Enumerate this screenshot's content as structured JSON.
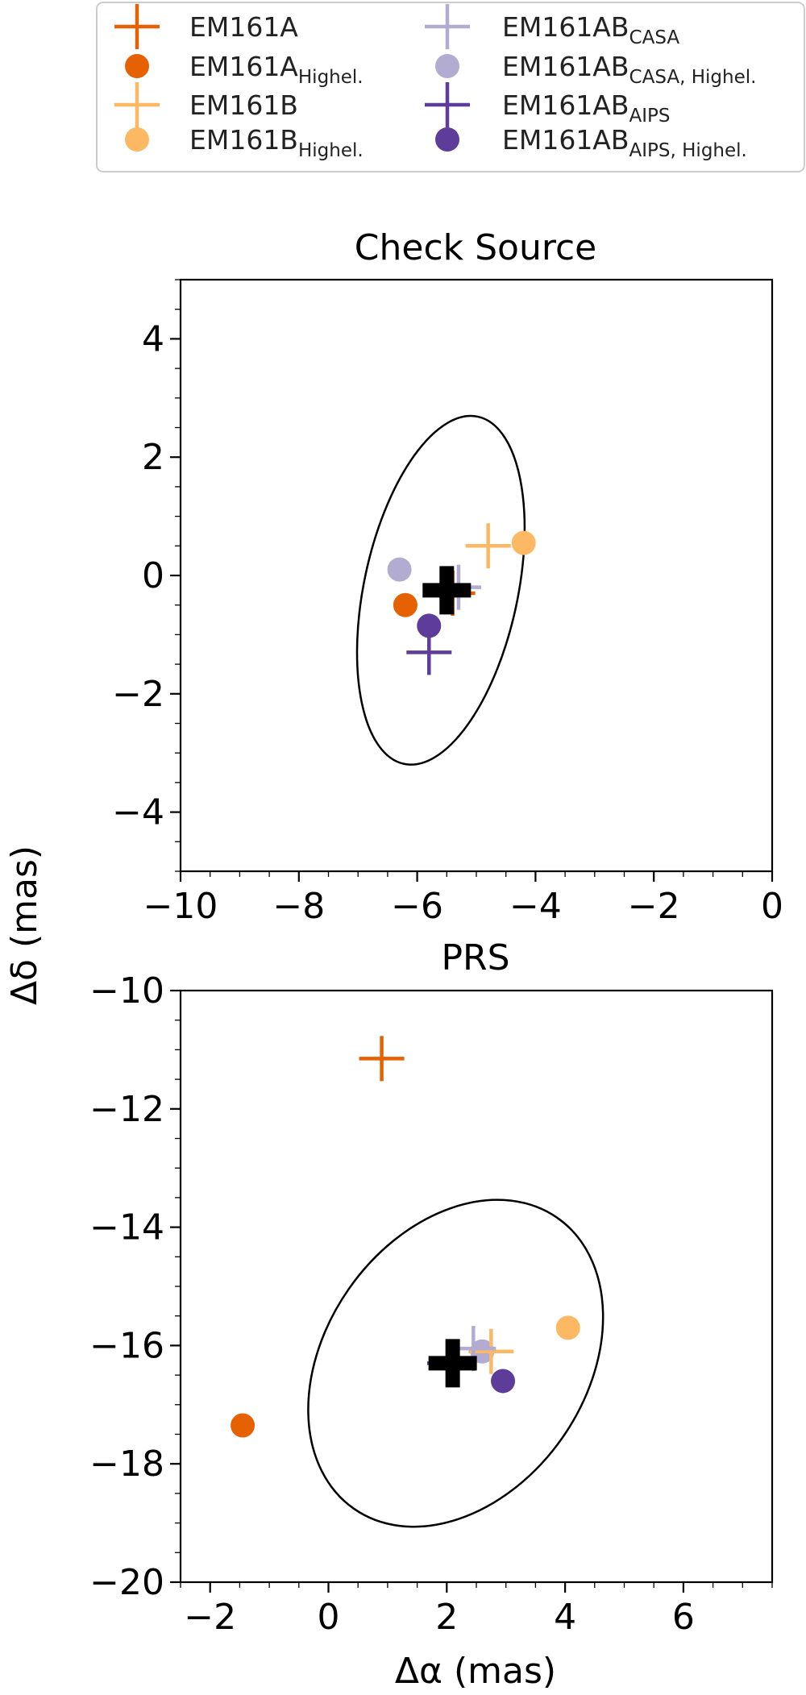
{
  "colors": {
    "EM161A": "#e66101",
    "EM161B": "#fdb863",
    "EM161AB_CASA": "#b2abd2",
    "EM161AB_AIPS": "#5e3c99",
    "reference": "#000000",
    "ellipse": "#000000"
  },
  "legend": {
    "entries": [
      {
        "id": "a",
        "base": "EM161A",
        "sub": "",
        "marker": "plus",
        "color_key": "EM161A"
      },
      {
        "id": "a-hi",
        "base": "EM161A",
        "sub": "Highel.",
        "marker": "circle",
        "color_key": "EM161A"
      },
      {
        "id": "b",
        "base": "EM161B",
        "sub": "",
        "marker": "plus",
        "color_key": "EM161B"
      },
      {
        "id": "b-hi",
        "base": "EM161B",
        "sub": "Highel.",
        "marker": "circle",
        "color_key": "EM161B"
      },
      {
        "id": "casa",
        "base": "EM161AB",
        "sub": "CASA",
        "marker": "plus",
        "color_key": "EM161AB_CASA"
      },
      {
        "id": "casa-hi",
        "base": "EM161AB",
        "sub": "CASA, Highel.",
        "marker": "circle",
        "color_key": "EM161AB_CASA"
      },
      {
        "id": "aips",
        "base": "EM161AB",
        "sub": "AIPS",
        "marker": "plus",
        "color_key": "EM161AB_AIPS"
      },
      {
        "id": "aips-hi",
        "base": "EM161AB",
        "sub": "AIPS, Highel.",
        "marker": "circle",
        "color_key": "EM161AB_AIPS"
      }
    ]
  },
  "shared": {
    "ylabel": "Δδ (mas)",
    "xlabel": "Δα (mas)"
  },
  "chart_data": [
    {
      "type": "scatter",
      "title": "Check Source",
      "xlabel": "",
      "ylabel": "Δδ (mas)",
      "xlim": [
        -10,
        0
      ],
      "ylim": [
        -5,
        5
      ],
      "xticks": [
        -10,
        -8,
        -6,
        -4,
        -2,
        0
      ],
      "yticks": [
        -4,
        -2,
        0,
        2,
        4
      ],
      "xminor_step": 0.5,
      "yminor_step": 0.5,
      "ellipse": {
        "cx": -5.6,
        "cy": -0.25,
        "semi_major": 3.0,
        "semi_minor": 1.3,
        "angle_deg": 78
      },
      "reference": {
        "x": -5.5,
        "y": -0.25
      },
      "points": [
        {
          "series": "EM161A",
          "marker": "plus",
          "x": -5.4,
          "y": -0.3
        },
        {
          "series": "EM161A_Highel.",
          "marker": "circle",
          "x": -6.2,
          "y": -0.5
        },
        {
          "series": "EM161B",
          "marker": "plus",
          "x": -4.8,
          "y": 0.5
        },
        {
          "series": "EM161B_Highel.",
          "marker": "circle",
          "x": -4.2,
          "y": 0.55
        },
        {
          "series": "EM161AB_CASA",
          "marker": "plus",
          "x": -5.3,
          "y": -0.2
        },
        {
          "series": "EM161AB_CASA,Highel.",
          "marker": "circle",
          "x": -6.3,
          "y": 0.1
        },
        {
          "series": "EM161AB_AIPS",
          "marker": "plus",
          "x": -5.8,
          "y": -1.3
        },
        {
          "series": "EM161AB_AIPS,Highel.",
          "marker": "circle",
          "x": -5.8,
          "y": -0.85
        }
      ]
    },
    {
      "type": "scatter",
      "title": "PRS",
      "xlabel": "Δα (mas)",
      "ylabel": "Δδ (mas)",
      "xlim": [
        -2.5,
        7.5
      ],
      "ylim": [
        -20,
        -10
      ],
      "xticks": [
        -2,
        0,
        2,
        4,
        6
      ],
      "yticks": [
        -20,
        -18,
        -16,
        -14,
        -12,
        -10
      ],
      "xminor_step": 0.5,
      "yminor_step": 0.5,
      "ellipse": {
        "cx": 2.15,
        "cy": -16.3,
        "semi_major": 3.0,
        "semi_minor": 2.2,
        "angle_deg": 55
      },
      "reference": {
        "x": 2.1,
        "y": -16.3
      },
      "points": [
        {
          "series": "EM161A",
          "marker": "plus",
          "x": 0.9,
          "y": -11.15
        },
        {
          "series": "EM161A_Highel.",
          "marker": "circle",
          "x": -1.45,
          "y": -17.35
        },
        {
          "series": "EM161B",
          "marker": "plus",
          "x": 2.75,
          "y": -16.1
        },
        {
          "series": "EM161B_Highel.",
          "marker": "circle",
          "x": 4.05,
          "y": -15.7
        },
        {
          "series": "EM161AB_CASA",
          "marker": "plus",
          "x": 2.45,
          "y": -16.05
        },
        {
          "series": "EM161AB_CASA,Highel.",
          "marker": "circle",
          "x": 2.6,
          "y": -16.1
        },
        {
          "series": "EM161AB_AIPS",
          "marker": "plus",
          "x": 2.05,
          "y": -16.3
        },
        {
          "series": "EM161AB_AIPS,Highel.",
          "marker": "circle",
          "x": 2.95,
          "y": -16.6
        }
      ]
    }
  ]
}
